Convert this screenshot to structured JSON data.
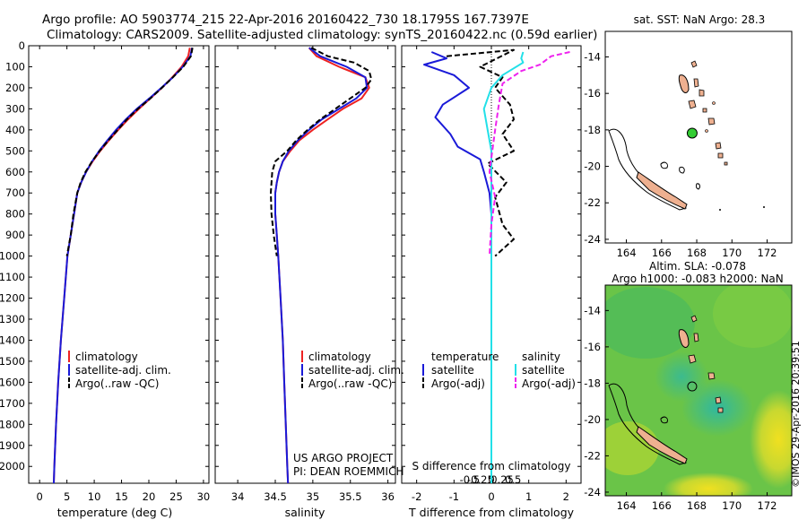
{
  "header": {
    "line1": "Argo profile: AO 5903774_215 22-Apr-2016 20160422_730 18.1795S 167.7397E",
    "line2": "Climatology: CARS2009. Satellite-adjusted climatology: synTS_20160422.nc (0.59d earlier)"
  },
  "colors": {
    "climatology": "#ee2222",
    "satellite_clim": "#1a1ad8",
    "argo": "#000000",
    "satellite_salinity": "#22e0e8",
    "argo_salinity": "#ee22ee",
    "land": "#eeb090",
    "marker": "#33cc33"
  },
  "chart_data": [
    {
      "id": "temperature",
      "type": "line",
      "xlabel": "temperature (deg C)",
      "xlim": [
        -2,
        31
      ],
      "xticks": [
        "0",
        "5",
        "10",
        "15",
        "20",
        "25",
        "30"
      ],
      "ylim": [
        2080,
        0
      ],
      "yticks": [
        "0",
        "100",
        "200",
        "300",
        "400",
        "500",
        "600",
        "700",
        "800",
        "900",
        "1000",
        "1100",
        "1200",
        "1300",
        "1400",
        "1500",
        "1600",
        "1700",
        "1800",
        "1900",
        "2000"
      ],
      "legend": [
        "climatology",
        "satellite-adj. clim.",
        "Argo(..raw -QC)"
      ],
      "series": [
        {
          "name": "climatology",
          "color": "red",
          "points": [
            [
              27.5,
              10
            ],
            [
              27.2,
              50
            ],
            [
              26,
              100
            ],
            [
              24.3,
              150
            ],
            [
              22.4,
              200
            ],
            [
              20.3,
              250
            ],
            [
              18.2,
              300
            ],
            [
              16.2,
              350
            ],
            [
              14.4,
              400
            ],
            [
              12.7,
              450
            ],
            [
              11.1,
              500
            ],
            [
              9.7,
              550
            ],
            [
              8.5,
              600
            ],
            [
              7.6,
              650
            ],
            [
              6.9,
              700
            ],
            [
              6.3,
              800
            ],
            [
              5.7,
              900
            ],
            [
              5.1,
              1000
            ],
            [
              4.5,
              1200
            ],
            [
              3.9,
              1400
            ],
            [
              3.4,
              1600
            ],
            [
              3.0,
              1800
            ],
            [
              2.7,
              2000
            ],
            [
              2.6,
              2080
            ]
          ]
        },
        {
          "name": "satellite-adj. clim.",
          "color": "blue",
          "points": [
            [
              27.9,
              10
            ],
            [
              27.6,
              50
            ],
            [
              26.2,
              100
            ],
            [
              24.4,
              150
            ],
            [
              22.3,
              200
            ],
            [
              20.1,
              250
            ],
            [
              17.8,
              300
            ],
            [
              15.8,
              350
            ],
            [
              14.0,
              400
            ],
            [
              12.4,
              450
            ],
            [
              10.9,
              500
            ],
            [
              9.6,
              550
            ],
            [
              8.5,
              600
            ],
            [
              7.6,
              650
            ],
            [
              6.9,
              700
            ],
            [
              6.3,
              800
            ],
            [
              5.7,
              900
            ],
            [
              5.1,
              1000
            ],
            [
              4.5,
              1200
            ],
            [
              3.9,
              1400
            ],
            [
              3.4,
              1600
            ],
            [
              3.0,
              1800
            ],
            [
              2.7,
              2000
            ],
            [
              2.6,
              2080
            ]
          ]
        },
        {
          "name": "Argo(..raw -QC)",
          "color": "black",
          "dash": true,
          "points": [
            [
              28.0,
              10
            ],
            [
              27.7,
              50
            ],
            [
              26.3,
              100
            ],
            [
              24.4,
              150
            ],
            [
              22.4,
              200
            ],
            [
              20.3,
              250
            ],
            [
              18.0,
              300
            ],
            [
              16.0,
              350
            ],
            [
              14.3,
              400
            ],
            [
              12.6,
              450
            ],
            [
              11.0,
              500
            ],
            [
              9.6,
              550
            ],
            [
              8.4,
              600
            ],
            [
              7.5,
              650
            ],
            [
              6.9,
              700
            ],
            [
              6.2,
              800
            ],
            [
              5.7,
              900
            ],
            [
              5.0,
              1000
            ]
          ]
        }
      ]
    },
    {
      "id": "salinity",
      "type": "line",
      "xlabel": "salinity",
      "xlim": [
        33.7,
        36.1
      ],
      "xticks": [
        "34",
        "34.5",
        "35",
        "35.5",
        "36"
      ],
      "ylim": [
        2080,
        0
      ],
      "legend": [
        "climatology",
        "satellite-adj. clim.",
        "Argo(..raw -QC)"
      ],
      "annotation": [
        "US ARGO PROJECT",
        "PI: DEAN ROEMMICH"
      ],
      "series": [
        {
          "name": "climatology",
          "color": "red",
          "points": [
            [
              34.95,
              10
            ],
            [
              35.05,
              50
            ],
            [
              35.35,
              100
            ],
            [
              35.7,
              150
            ],
            [
              35.75,
              200
            ],
            [
              35.65,
              250
            ],
            [
              35.4,
              300
            ],
            [
              35.2,
              350
            ],
            [
              35.0,
              400
            ],
            [
              34.82,
              450
            ],
            [
              34.7,
              500
            ],
            [
              34.6,
              550
            ],
            [
              34.55,
              600
            ],
            [
              34.52,
              650
            ],
            [
              34.5,
              700
            ],
            [
              34.5,
              800
            ],
            [
              34.52,
              900
            ],
            [
              34.54,
              1000
            ],
            [
              34.57,
              1200
            ],
            [
              34.6,
              1400
            ],
            [
              34.62,
              1600
            ],
            [
              34.64,
              1800
            ],
            [
              34.66,
              2000
            ],
            [
              34.67,
              2080
            ]
          ]
        },
        {
          "name": "satellite-adj. clim.",
          "color": "blue",
          "points": [
            [
              34.95,
              10
            ],
            [
              35.1,
              50
            ],
            [
              35.45,
              100
            ],
            [
              35.7,
              150
            ],
            [
              35.72,
              200
            ],
            [
              35.58,
              250
            ],
            [
              35.35,
              300
            ],
            [
              35.12,
              350
            ],
            [
              34.95,
              400
            ],
            [
              34.8,
              450
            ],
            [
              34.68,
              500
            ],
            [
              34.6,
              550
            ],
            [
              34.55,
              600
            ],
            [
              34.52,
              650
            ],
            [
              34.5,
              700
            ],
            [
              34.5,
              800
            ],
            [
              34.52,
              900
            ],
            [
              34.54,
              1000
            ],
            [
              34.57,
              1200
            ],
            [
              34.6,
              1400
            ],
            [
              34.62,
              1600
            ],
            [
              34.64,
              1800
            ],
            [
              34.66,
              2000
            ],
            [
              34.67,
              2080
            ]
          ]
        },
        {
          "name": "Argo(..raw -QC)",
          "color": "black",
          "dash": true,
          "points": [
            [
              34.98,
              10
            ],
            [
              35.2,
              50
            ],
            [
              35.55,
              80
            ],
            [
              35.75,
              120
            ],
            [
              35.78,
              160
            ],
            [
              35.7,
              200
            ],
            [
              35.5,
              250
            ],
            [
              35.3,
              300
            ],
            [
              35.1,
              350
            ],
            [
              34.93,
              400
            ],
            [
              34.78,
              450
            ],
            [
              34.66,
              500
            ],
            [
              34.5,
              550
            ],
            [
              34.46,
              600
            ],
            [
              34.45,
              650
            ],
            [
              34.44,
              700
            ],
            [
              34.45,
              800
            ],
            [
              34.48,
              900
            ],
            [
              34.52,
              1000
            ]
          ]
        }
      ]
    },
    {
      "id": "difference",
      "type": "line",
      "xlabel": "T difference from climatology",
      "xlabel_top": "S difference from climatology",
      "xlim": [
        -2.4,
        2.4
      ],
      "xticks": [
        "-2",
        "-1",
        "0",
        "1",
        "2"
      ],
      "xticks_top": [
        "-0.5",
        "-0.25",
        "0",
        "0.25",
        "0.5"
      ],
      "ylim": [
        2080,
        0
      ],
      "legend_left": {
        "title": "temperature",
        "items": [
          "satellite",
          "Argo(-adj)"
        ]
      },
      "legend_right": {
        "title": "salinity",
        "items": [
          "satellite",
          "Argo(-adj)"
        ]
      },
      "series": [
        {
          "name": "temperature satellite",
          "color": "blue",
          "points": [
            [
              -1.6,
              30
            ],
            [
              -1.2,
              60
            ],
            [
              -1.8,
              90
            ],
            [
              -1.0,
              140
            ],
            [
              -0.6,
              200
            ],
            [
              -1.3,
              280
            ],
            [
              -1.5,
              340
            ],
            [
              -1.1,
              420
            ],
            [
              -0.9,
              480
            ],
            [
              -0.3,
              540
            ],
            [
              -0.2,
              600
            ],
            [
              -0.05,
              700
            ],
            [
              0,
              800
            ],
            [
              0,
              1000
            ],
            [
              0,
              1500
            ],
            [
              0,
              2080
            ]
          ]
        },
        {
          "name": "temperature Argo(-adj)",
          "color": "black",
          "dash": true,
          "points": [
            [
              -1.2,
              50
            ],
            [
              0.6,
              20
            ],
            [
              -0.3,
              100
            ],
            [
              0.3,
              150
            ],
            [
              0.1,
              200
            ],
            [
              0.5,
              280
            ],
            [
              0.6,
              350
            ],
            [
              0.3,
              420
            ],
            [
              0.6,
              500
            ],
            [
              -0.1,
              560
            ],
            [
              0.4,
              650
            ],
            [
              0.1,
              720
            ],
            [
              0.3,
              850
            ],
            [
              0.6,
              920
            ],
            [
              0.1,
              1000
            ]
          ]
        },
        {
          "name": "salinity satellite",
          "color": "cyan",
          "points": [
            [
              0.85,
              30
            ],
            [
              0.8,
              60
            ],
            [
              0.85,
              80
            ],
            [
              0.3,
              140
            ],
            [
              0,
              200
            ],
            [
              -0.2,
              300
            ],
            [
              -0.1,
              400
            ],
            [
              0,
              500
            ],
            [
              0,
              600
            ],
            [
              0,
              800
            ],
            [
              0,
              1000
            ],
            [
              0,
              1500
            ],
            [
              0,
              2080
            ]
          ]
        },
        {
          "name": "salinity Argo(-adj)",
          "color": "magenta",
          "dash": true,
          "points": [
            [
              2.1,
              30
            ],
            [
              1.6,
              50
            ],
            [
              1.3,
              90
            ],
            [
              0.8,
              120
            ],
            [
              0.3,
              180
            ],
            [
              0.2,
              280
            ],
            [
              0.1,
              400
            ],
            [
              -0.05,
              600
            ],
            [
              0.1,
              720
            ],
            [
              0,
              850
            ],
            [
              -0.05,
              1000
            ]
          ]
        }
      ]
    }
  ],
  "maps": {
    "sst": {
      "title": "sat. SST: NaN Argo: 28.3",
      "xticks": [
        "164",
        "166",
        "168",
        "170",
        "172"
      ],
      "yticks": [
        "-14",
        "-16",
        "-18",
        "-20",
        "-22",
        "-24"
      ]
    },
    "sla": {
      "title_line1": "Altim. SLA: -0.078",
      "title_line2": "Argo h1000: -0.083 h2000: NaN",
      "xticks": [
        "164",
        "166",
        "168",
        "170",
        "172"
      ],
      "yticks": [
        "-14",
        "-16",
        "-18",
        "-20",
        "-22",
        "-24"
      ]
    },
    "profile_position": {
      "lon": 167.7397,
      "lat": -18.1795
    }
  },
  "footer": {
    "credit": "©IMOS 29-Apr-2016 20:39:51"
  }
}
